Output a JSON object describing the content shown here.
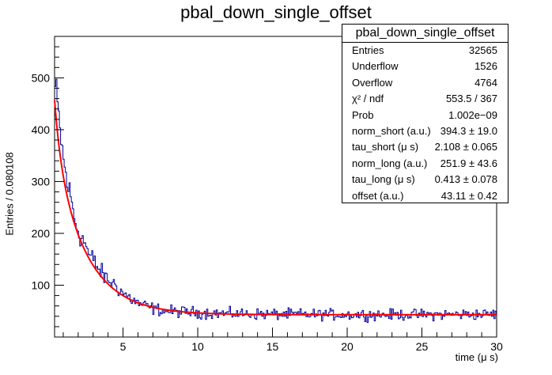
{
  "chart_data": {
    "type": "histogram",
    "title": "pbal_down_single_offset",
    "xlabel": "time (μ s)",
    "ylabel": "Entries / 0.080108",
    "xlim": [
      0.42,
      30
    ],
    "ylim": [
      0,
      580
    ],
    "xticks": [
      5,
      10,
      15,
      20,
      25,
      30
    ],
    "yticks": [
      100,
      200,
      300,
      400,
      500
    ],
    "grid": false,
    "bin_width": 0.080108,
    "histogram": {
      "color": "#000099",
      "bin_centers": [
        0.5,
        0.75,
        1.0,
        1.25,
        1.5,
        1.75,
        2.0,
        2.25,
        2.5,
        2.75,
        3.0,
        3.5,
        4.0,
        4.5,
        5.0,
        6.0,
        7.0,
        8.0,
        10.0,
        12.0,
        15.0,
        20.0,
        25.0,
        29.8
      ],
      "counts": [
        480,
        410,
        345,
        300,
        270,
        230,
        205,
        190,
        180,
        155,
        150,
        125,
        110,
        100,
        85,
        65,
        55,
        50,
        47,
        45,
        44,
        43,
        43,
        44
      ]
    },
    "fit": {
      "color": "#ff0000",
      "function": "norm_short*exp(-t/tau_short) + norm_long*exp(-t/tau_long) + offset",
      "norm_short": 394.3,
      "tau_short": 2.108,
      "norm_long": 251.9,
      "tau_long": 0.413,
      "offset": 43.11
    },
    "stats_box": {
      "title": "pbal_down_single_offset",
      "rows": [
        {
          "label": "Entries",
          "value": "32565"
        },
        {
          "label": "Underflow",
          "value": "1526"
        },
        {
          "label": "Overflow",
          "value": "4764"
        },
        {
          "label": "χ² / ndf",
          "value": "553.5 / 367"
        },
        {
          "label": "Prob",
          "value": "1.002e−09"
        },
        {
          "label": "norm_short (a.u.)",
          "value": "394.3 ± 19.0"
        },
        {
          "label": "tau_short (μ s)",
          "value": "2.108 ± 0.065"
        },
        {
          "label": "norm_long (a.u.)",
          "value": "251.9 ± 43.6"
        },
        {
          "label": "tau_long (μ s)",
          "value": "0.413 ± 0.078"
        },
        {
          "label": "offset (a.u.)",
          "value": "43.11 ± 0.42"
        }
      ]
    }
  }
}
